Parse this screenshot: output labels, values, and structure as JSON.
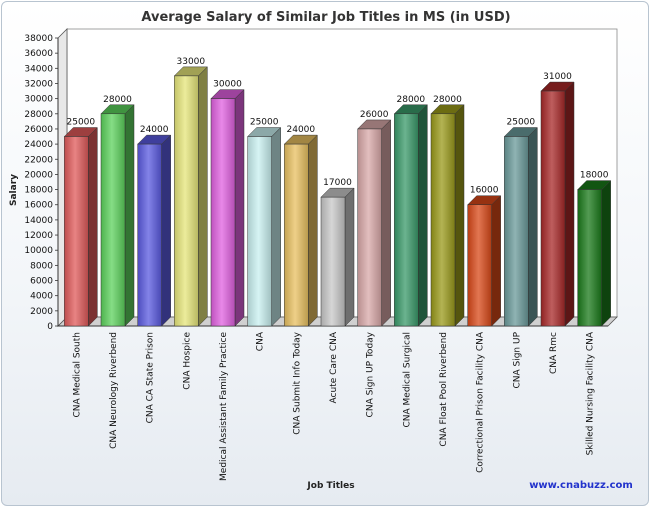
{
  "chart_data": {
    "type": "bar",
    "title": "Average Salary of Similar Job Titles in MS (in USD)",
    "xlabel": "Job Titles",
    "ylabel": "Salary",
    "ylim": [
      0,
      38000
    ],
    "ytick_step": 2000,
    "grid": false,
    "categories": [
      "CNA Medical South",
      "CNA Neurology Riverbend",
      "CNA CA State Prison",
      "CNA Hospice",
      "Medical Assistant Family Practice",
      "CNA",
      "CNA Submit Info Today",
      "Acute Care CNA",
      "CNA Sign UP Today",
      "CNA Medical Surgical",
      "CNA Float Pool Riverbend",
      "Correctional Prison Facility CNA",
      "CNA Sign UP",
      "CNA Rmc",
      "Skilled Nursing Facility CNA"
    ],
    "values": [
      25000,
      28000,
      24000,
      33000,
      30000,
      25000,
      24000,
      17000,
      26000,
      28000,
      28000,
      16000,
      25000,
      31000,
      18000
    ],
    "colors": [
      "#e05a5a",
      "#5cd25c",
      "#5a5ae0",
      "#e6e67a",
      "#e060e0",
      "#c8f0f0",
      "#e8c060",
      "#c8c8c8",
      "#d8a8a8",
      "#3a9a6a",
      "#9a9a1a",
      "#d84818",
      "#6a9a9a",
      "#a82828",
      "#1a7a1a"
    ]
  },
  "footer": {
    "credit": "www.cnabuzz.com"
  }
}
